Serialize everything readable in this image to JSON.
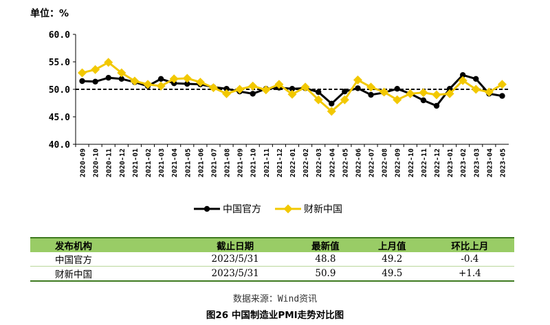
{
  "chart_data": {
    "type": "line",
    "unit_label": "单位：%",
    "ylim": [
      40.0,
      60.0
    ],
    "yticks": [
      "60.0",
      "55.0",
      "50.0",
      "45.0",
      "40.0"
    ],
    "reference_line": 50.0,
    "categories": [
      "2020-09",
      "2020-10",
      "2020-11",
      "2020-12",
      "2021-01",
      "2021-02",
      "2021-03",
      "2021-04",
      "2021-05",
      "2021-06",
      "2021-07",
      "2021-08",
      "2021-09",
      "2021-10",
      "2021-11",
      "2021-12",
      "2022-01",
      "2022-02",
      "2022-03",
      "2022-04",
      "2022-05",
      "2022-06",
      "2022-07",
      "2022-08",
      "2022-09",
      "2022-10",
      "2022-11",
      "2022-12",
      "2023-01",
      "2023-02",
      "2023-03",
      "2023-04",
      "2023-05"
    ],
    "series": [
      {
        "name": "中国官方",
        "color": "#000000",
        "marker": "circle",
        "values": [
          51.5,
          51.4,
          52.1,
          51.9,
          51.3,
          50.6,
          51.9,
          51.1,
          51.0,
          50.9,
          50.4,
          50.1,
          49.6,
          49.2,
          50.1,
          50.3,
          50.1,
          50.2,
          49.5,
          47.4,
          49.6,
          50.2,
          49.0,
          49.4,
          50.1,
          49.2,
          48.0,
          47.0,
          50.1,
          52.6,
          51.9,
          49.2,
          48.8
        ]
      },
      {
        "name": "财新中国",
        "color": "#f2c800",
        "marker": "diamond",
        "values": [
          53.0,
          53.6,
          54.9,
          53.0,
          51.5,
          50.9,
          50.6,
          51.9,
          52.0,
          51.3,
          50.3,
          49.2,
          50.0,
          50.6,
          49.9,
          50.9,
          49.1,
          50.4,
          48.1,
          46.0,
          48.1,
          51.7,
          50.4,
          49.5,
          48.1,
          49.2,
          49.4,
          49.0,
          49.2,
          51.6,
          50.0,
          49.5,
          50.9
        ]
      }
    ],
    "legend_position": "bottom-center",
    "grid": false
  },
  "table": {
    "headers": [
      "发布机构",
      "截止日期",
      "最新值",
      "上月值",
      "环比上月"
    ],
    "rows": [
      [
        "中国官方",
        "2023/5/31",
        "48.8",
        "49.2",
        "-0.4"
      ],
      [
        "财新中国",
        "2023/5/31",
        "50.9",
        "49.5",
        "+1.4"
      ]
    ]
  },
  "source": "数据来源：Wind资讯",
  "caption": "图26  中国制造业PMI走势对比图"
}
